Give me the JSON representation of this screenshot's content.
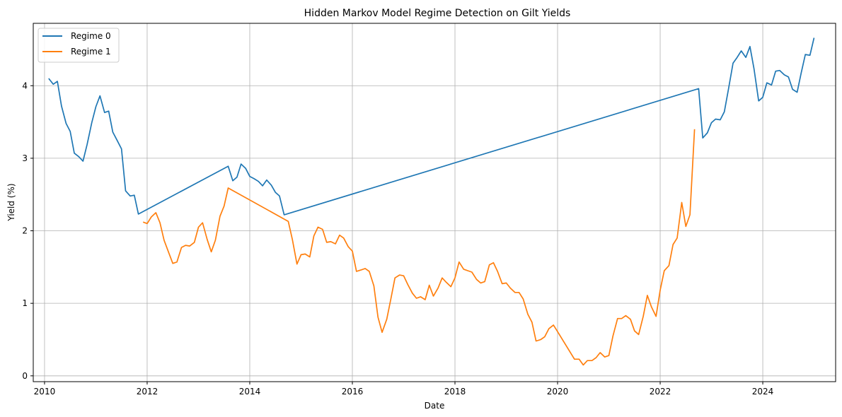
{
  "chart_data": {
    "type": "line",
    "title": "Hidden Markov Model Regime Detection on Gilt Yields",
    "xlabel": "Date",
    "ylabel": "Yield (%)",
    "xlim": [
      2009.78,
      2025.42
    ],
    "ylim": [
      -0.08,
      4.86
    ],
    "x_ticks": [
      2010,
      2012,
      2014,
      2016,
      2018,
      2020,
      2022,
      2024
    ],
    "x_tick_labels": [
      "2010",
      "2012",
      "2014",
      "2016",
      "2018",
      "2020",
      "2022",
      "2024"
    ],
    "y_ticks": [
      0,
      1,
      2,
      3,
      4
    ],
    "y_tick_labels": [
      "0",
      "1",
      "2",
      "3",
      "4"
    ],
    "grid": true,
    "legend_position": "top-left",
    "series": [
      {
        "name": "Regime 0",
        "color": "#1f77b4",
        "points": [
          [
            2010.08,
            4.1
          ],
          [
            2010.17,
            4.02
          ],
          [
            2010.25,
            4.06
          ],
          [
            2010.33,
            3.72
          ],
          [
            2010.42,
            3.48
          ],
          [
            2010.5,
            3.37
          ],
          [
            2010.58,
            3.07
          ],
          [
            2010.67,
            3.02
          ],
          [
            2010.75,
            2.96
          ],
          [
            2010.83,
            3.19
          ],
          [
            2010.92,
            3.49
          ],
          [
            2011.0,
            3.71
          ],
          [
            2011.08,
            3.86
          ],
          [
            2011.17,
            3.63
          ],
          [
            2011.25,
            3.65
          ],
          [
            2011.33,
            3.36
          ],
          [
            2011.42,
            3.24
          ],
          [
            2011.5,
            3.13
          ],
          [
            2011.58,
            2.55
          ],
          [
            2011.67,
            2.48
          ],
          [
            2011.75,
            2.49
          ],
          [
            2011.83,
            2.23
          ],
          [
            2013.58,
            2.89
          ],
          [
            2013.67,
            2.69
          ],
          [
            2013.75,
            2.74
          ],
          [
            2013.83,
            2.92
          ],
          [
            2013.92,
            2.86
          ],
          [
            2014.0,
            2.75
          ],
          [
            2014.08,
            2.72
          ],
          [
            2014.17,
            2.68
          ],
          [
            2014.25,
            2.62
          ],
          [
            2014.33,
            2.7
          ],
          [
            2014.42,
            2.63
          ],
          [
            2014.5,
            2.53
          ],
          [
            2014.58,
            2.48
          ],
          [
            2014.67,
            2.22
          ],
          [
            2022.75,
            3.96
          ],
          [
            2022.83,
            3.28
          ],
          [
            2022.92,
            3.35
          ],
          [
            2023.0,
            3.49
          ],
          [
            2023.08,
            3.54
          ],
          [
            2023.17,
            3.53
          ],
          [
            2023.25,
            3.64
          ],
          [
            2023.33,
            3.95
          ],
          [
            2023.42,
            4.31
          ],
          [
            2023.5,
            4.39
          ],
          [
            2023.58,
            4.48
          ],
          [
            2023.67,
            4.39
          ],
          [
            2023.75,
            4.54
          ],
          [
            2023.83,
            4.23
          ],
          [
            2023.92,
            3.79
          ],
          [
            2024.0,
            3.84
          ],
          [
            2024.08,
            4.04
          ],
          [
            2024.17,
            4.01
          ],
          [
            2024.25,
            4.2
          ],
          [
            2024.33,
            4.21
          ],
          [
            2024.42,
            4.15
          ],
          [
            2024.5,
            4.12
          ],
          [
            2024.58,
            3.95
          ],
          [
            2024.67,
            3.91
          ],
          [
            2024.75,
            4.18
          ],
          [
            2024.83,
            4.43
          ],
          [
            2024.92,
            4.42
          ],
          [
            2025.0,
            4.66
          ]
        ]
      },
      {
        "name": "Regime 1",
        "color": "#ff7f0e",
        "points": [
          [
            2011.92,
            2.12
          ],
          [
            2012.0,
            2.1
          ],
          [
            2012.08,
            2.19
          ],
          [
            2012.17,
            2.25
          ],
          [
            2012.25,
            2.11
          ],
          [
            2012.33,
            1.87
          ],
          [
            2012.42,
            1.7
          ],
          [
            2012.5,
            1.55
          ],
          [
            2012.58,
            1.57
          ],
          [
            2012.67,
            1.77
          ],
          [
            2012.75,
            1.8
          ],
          [
            2012.83,
            1.79
          ],
          [
            2012.92,
            1.84
          ],
          [
            2013.0,
            2.05
          ],
          [
            2013.08,
            2.11
          ],
          [
            2013.17,
            1.88
          ],
          [
            2013.25,
            1.71
          ],
          [
            2013.33,
            1.87
          ],
          [
            2013.42,
            2.2
          ],
          [
            2013.5,
            2.34
          ],
          [
            2013.58,
            2.59
          ],
          [
            2014.75,
            2.13
          ],
          [
            2014.83,
            1.88
          ],
          [
            2014.92,
            1.54
          ],
          [
            2015.0,
            1.67
          ],
          [
            2015.08,
            1.68
          ],
          [
            2015.17,
            1.64
          ],
          [
            2015.25,
            1.93
          ],
          [
            2015.33,
            2.05
          ],
          [
            2015.42,
            2.02
          ],
          [
            2015.5,
            1.84
          ],
          [
            2015.58,
            1.85
          ],
          [
            2015.67,
            1.82
          ],
          [
            2015.75,
            1.94
          ],
          [
            2015.83,
            1.9
          ],
          [
            2015.92,
            1.78
          ],
          [
            2016.0,
            1.72
          ],
          [
            2016.08,
            1.44
          ],
          [
            2016.17,
            1.46
          ],
          [
            2016.25,
            1.48
          ],
          [
            2016.33,
            1.44
          ],
          [
            2016.42,
            1.24
          ],
          [
            2016.5,
            0.81
          ],
          [
            2016.58,
            0.6
          ],
          [
            2016.67,
            0.78
          ],
          [
            2016.75,
            1.06
          ],
          [
            2016.83,
            1.35
          ],
          [
            2016.92,
            1.39
          ],
          [
            2017.0,
            1.38
          ],
          [
            2017.08,
            1.26
          ],
          [
            2017.17,
            1.14
          ],
          [
            2017.25,
            1.07
          ],
          [
            2017.33,
            1.09
          ],
          [
            2017.42,
            1.05
          ],
          [
            2017.5,
            1.25
          ],
          [
            2017.58,
            1.1
          ],
          [
            2017.67,
            1.21
          ],
          [
            2017.75,
            1.35
          ],
          [
            2017.83,
            1.29
          ],
          [
            2017.92,
            1.23
          ],
          [
            2018.0,
            1.35
          ],
          [
            2018.08,
            1.57
          ],
          [
            2018.17,
            1.47
          ],
          [
            2018.25,
            1.45
          ],
          [
            2018.33,
            1.43
          ],
          [
            2018.42,
            1.33
          ],
          [
            2018.5,
            1.28
          ],
          [
            2018.58,
            1.3
          ],
          [
            2018.67,
            1.53
          ],
          [
            2018.75,
            1.56
          ],
          [
            2018.83,
            1.44
          ],
          [
            2018.92,
            1.27
          ],
          [
            2019.0,
            1.28
          ],
          [
            2019.08,
            1.21
          ],
          [
            2019.17,
            1.15
          ],
          [
            2019.25,
            1.15
          ],
          [
            2019.33,
            1.06
          ],
          [
            2019.42,
            0.85
          ],
          [
            2019.5,
            0.74
          ],
          [
            2019.58,
            0.48
          ],
          [
            2019.67,
            0.5
          ],
          [
            2019.75,
            0.54
          ],
          [
            2019.83,
            0.65
          ],
          [
            2019.92,
            0.7
          ],
          [
            2020.0,
            0.61
          ],
          [
            2020.33,
            0.23
          ],
          [
            2020.42,
            0.23
          ],
          [
            2020.5,
            0.15
          ],
          [
            2020.58,
            0.21
          ],
          [
            2020.67,
            0.21
          ],
          [
            2020.75,
            0.25
          ],
          [
            2020.83,
            0.32
          ],
          [
            2020.92,
            0.26
          ],
          [
            2021.0,
            0.28
          ],
          [
            2021.08,
            0.55
          ],
          [
            2021.17,
            0.79
          ],
          [
            2021.25,
            0.79
          ],
          [
            2021.33,
            0.83
          ],
          [
            2021.42,
            0.78
          ],
          [
            2021.5,
            0.62
          ],
          [
            2021.58,
            0.57
          ],
          [
            2021.67,
            0.82
          ],
          [
            2021.75,
            1.11
          ],
          [
            2021.83,
            0.95
          ],
          [
            2021.92,
            0.82
          ],
          [
            2022.0,
            1.18
          ],
          [
            2022.08,
            1.45
          ],
          [
            2022.17,
            1.52
          ],
          [
            2022.25,
            1.81
          ],
          [
            2022.33,
            1.9
          ],
          [
            2022.42,
            2.39
          ],
          [
            2022.5,
            2.06
          ],
          [
            2022.58,
            2.22
          ],
          [
            2022.67,
            3.4
          ]
        ]
      }
    ]
  }
}
